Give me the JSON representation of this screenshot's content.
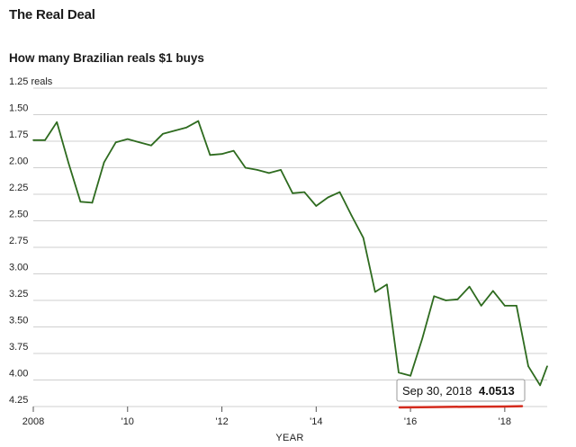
{
  "header": {
    "title": "The Real Deal",
    "subtitle": "How many Brazilian reals $1 buys"
  },
  "tooltip": {
    "date": "Sep 30, 2018",
    "value": "4.0513"
  },
  "colors": {
    "line": "#2e6b1f",
    "highlight": "#d42a1c",
    "grid": "#cfcfcf"
  },
  "chart_data": {
    "type": "line",
    "title": "How many Brazilian reals $1 buys",
    "xlabel": "YEAR",
    "ylabel": "",
    "y_inverted": true,
    "ylim": [
      1.25,
      4.25
    ],
    "xlim": [
      2008,
      2018.9
    ],
    "y_ticks": [
      {
        "value": 1.25,
        "label": "1.25 reals"
      },
      {
        "value": 1.5,
        "label": "1.50"
      },
      {
        "value": 1.75,
        "label": "1.75"
      },
      {
        "value": 2.0,
        "label": "2.00"
      },
      {
        "value": 2.25,
        "label": "2.25"
      },
      {
        "value": 2.5,
        "label": "2.50"
      },
      {
        "value": 2.75,
        "label": "2.75"
      },
      {
        "value": 3.0,
        "label": "3.00"
      },
      {
        "value": 3.25,
        "label": "3.25"
      },
      {
        "value": 3.5,
        "label": "3.50"
      },
      {
        "value": 3.75,
        "label": "3.75"
      },
      {
        "value": 4.0,
        "label": "4.00"
      },
      {
        "value": 4.25,
        "label": "4.25"
      }
    ],
    "x_ticks": [
      {
        "value": 2008,
        "label": "2008"
      },
      {
        "value": 2010,
        "label": "'10"
      },
      {
        "value": 2012,
        "label": "'12"
      },
      {
        "value": 2014,
        "label": "'14"
      },
      {
        "value": 2016,
        "label": "'16"
      },
      {
        "value": 2018,
        "label": "'18"
      }
    ],
    "grid": "horizontal",
    "series": [
      {
        "x": [
          2008.0,
          2008.25,
          2008.5,
          2008.75,
          2009.0,
          2009.25,
          2009.5,
          2009.75,
          2010.0,
          2010.25,
          2010.5,
          2010.75,
          2011.0,
          2011.25,
          2011.5,
          2011.75,
          2012.0,
          2012.25,
          2012.5,
          2012.75,
          2013.0,
          2013.25,
          2013.5,
          2013.75,
          2014.0,
          2014.25,
          2014.5,
          2014.75,
          2015.0,
          2015.25,
          2015.5,
          2015.75,
          2016.0,
          2016.25,
          2016.5,
          2016.75,
          2017.0,
          2017.25,
          2017.5,
          2017.75,
          2018.0,
          2018.25,
          2018.5,
          2018.75,
          2018.9
        ],
        "values": [
          1.74,
          1.74,
          1.57,
          1.96,
          2.32,
          2.33,
          1.95,
          1.76,
          1.73,
          1.76,
          1.79,
          1.68,
          1.65,
          1.62,
          1.56,
          1.88,
          1.87,
          1.84,
          2.0,
          2.02,
          2.05,
          2.02,
          2.24,
          2.23,
          2.36,
          2.28,
          2.23,
          2.45,
          2.66,
          3.17,
          3.1,
          3.93,
          3.96,
          3.61,
          3.21,
          3.25,
          3.24,
          3.12,
          3.3,
          3.16,
          3.3,
          3.3,
          3.87,
          4.05,
          3.87
        ]
      }
    ]
  }
}
